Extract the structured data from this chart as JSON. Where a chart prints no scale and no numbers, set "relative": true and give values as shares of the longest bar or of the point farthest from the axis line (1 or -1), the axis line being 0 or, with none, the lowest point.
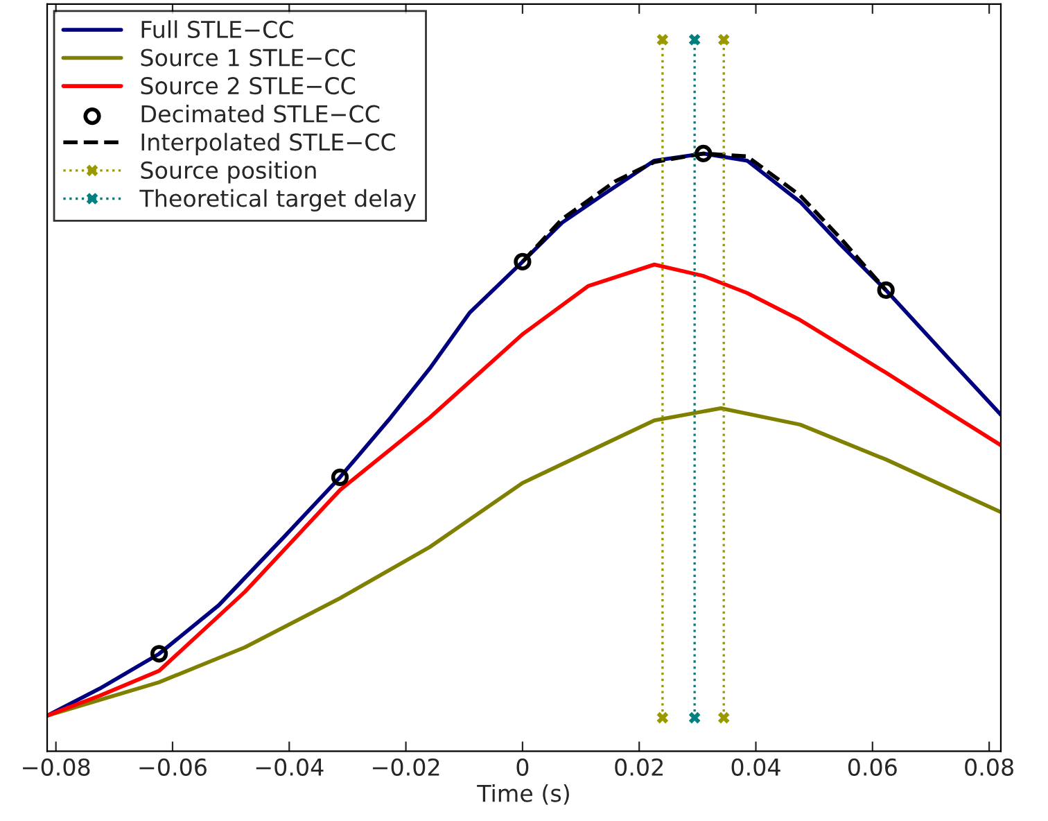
{
  "chart_data": {
    "type": "line",
    "xlabel": "Time (s)",
    "relative": true,
    "xlim": [
      -0.0815,
      0.082
    ],
    "xticks": [
      {
        "value": -0.08,
        "label": "−0.08"
      },
      {
        "value": -0.06,
        "label": "−0.06"
      },
      {
        "value": -0.04,
        "label": "−0.04"
      },
      {
        "value": -0.02,
        "label": "−0.02"
      },
      0,
      0.02,
      0.04,
      0.06,
      0.08
    ],
    "legend": "top left",
    "grid": false,
    "series": [
      {
        "name": "Full STLE−CC",
        "color": "#00007f",
        "line_style": "solid",
        "marker": "none",
        "x": [
          -0.0815,
          -0.0725,
          -0.0623,
          -0.0521,
          -0.0408,
          -0.0313,
          -0.0226,
          -0.0159,
          -0.0091,
          0,
          0.0068,
          0.0136,
          0.0226,
          0.031,
          0.0385,
          0.0476,
          0.0544,
          0.0623,
          0.0725,
          0.082
        ],
        "values": [
          0.05,
          0.088,
          0.137,
          0.205,
          0.302,
          0.385,
          0.469,
          0.538,
          0.616,
          0.688,
          0.743,
          0.781,
          0.83,
          0.84,
          0.83,
          0.772,
          0.713,
          0.648,
          0.557,
          0.473
        ]
      },
      {
        "name": "Source 1 STLE−CC",
        "color": "#808000",
        "line_style": "solid",
        "marker": "none",
        "x": [
          -0.0815,
          -0.0623,
          -0.0476,
          -0.0313,
          -0.0159,
          0,
          0.0136,
          0.0226,
          0.034,
          0.0476,
          0.0623,
          0.082
        ],
        "values": [
          0.05,
          0.097,
          0.146,
          0.215,
          0.287,
          0.377,
          0.43,
          0.465,
          0.482,
          0.459,
          0.41,
          0.336
        ]
      },
      {
        "name": "Source 2 STLE−CC",
        "color": "#ff0000",
        "line_style": "solid",
        "marker": "none",
        "x": [
          -0.0815,
          -0.0725,
          -0.0623,
          -0.0476,
          -0.0313,
          -0.0159,
          0,
          0.0113,
          0.0226,
          0.031,
          0.0385,
          0.0476,
          0.0623,
          0.0725,
          0.082
        ],
        "values": [
          0.05,
          0.078,
          0.113,
          0.224,
          0.367,
          0.469,
          0.586,
          0.654,
          0.684,
          0.668,
          0.644,
          0.606,
          0.532,
          0.479,
          0.43
        ]
      },
      {
        "name": "Decimated STLE−CC",
        "type": "scatter",
        "color": "#000000",
        "marker": "circle",
        "x": [
          -0.0623,
          -0.0313,
          0,
          0.031,
          0.0623
        ],
        "values": [
          0.137,
          0.385,
          0.688,
          0.84,
          0.648
        ]
      },
      {
        "name": "Interpolated STLE−CC",
        "color": "#000000",
        "line_style": "dashed",
        "marker": "none",
        "x": [
          0,
          0.0068,
          0.0159,
          0.0226,
          0.031,
          0.0385,
          0.0476,
          0.0544,
          0.0623
        ],
        "values": [
          0.688,
          0.748,
          0.801,
          0.828,
          0.84,
          0.836,
          0.781,
          0.722,
          0.648
        ]
      },
      {
        "name": "Source position",
        "color": "#9a9a00",
        "line_style": "dotted",
        "marker": "cross",
        "x": [
          0.024,
          0.024
        ],
        "values": [
          0.047,
          1.0
        ]
      },
      {
        "color": "#9a9a00",
        "line_style": "dotted",
        "marker": "cross",
        "x": [
          0.0345,
          0.0345
        ],
        "values": [
          0.047,
          1.0
        ]
      },
      {
        "name": "Theoretical target delay",
        "color": "#008080",
        "line_style": "dotted",
        "marker": "cross",
        "x": [
          0.0295,
          0.0295
        ],
        "values": [
          0.047,
          1.0
        ]
      }
    ]
  }
}
